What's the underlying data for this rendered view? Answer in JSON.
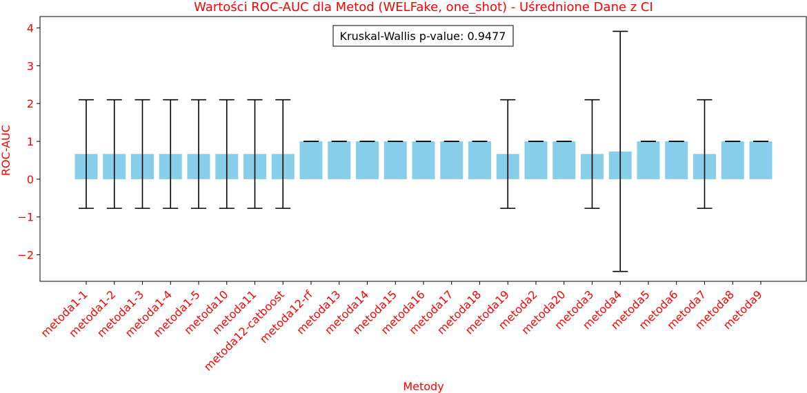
{
  "chart_data": {
    "type": "bar",
    "title": "Wartości ROC-AUC dla Metod (WELFake, one_shot) - Uśrednione Dane z CI",
    "xlabel": "Metody",
    "ylabel": "ROC-AUC",
    "ylim": [
      -2.7,
      4.3
    ],
    "yticks": [
      -2,
      -1,
      0,
      1,
      2,
      3,
      4
    ],
    "ytick_labels": [
      "−2",
      "−1",
      "0",
      "1",
      "2",
      "3",
      "4"
    ],
    "grid": false,
    "annotation": "Kruskal-Wallis p-value: 0.9477",
    "categories": [
      "metoda1-1",
      "metoda1-2",
      "metoda1-3",
      "metoda1-4",
      "metoda1-5",
      "metoda10",
      "metoda11",
      "metoda12-catboost",
      "metoda12-rf",
      "metoda13",
      "metoda14",
      "metoda15",
      "metoda16",
      "metoda17",
      "metoda18",
      "metoda19",
      "metoda2",
      "metoda20",
      "metoda3",
      "metoda4",
      "metoda5",
      "metoda6",
      "metoda7",
      "metoda8",
      "metoda9"
    ],
    "values": [
      0.667,
      0.667,
      0.667,
      0.667,
      0.667,
      0.667,
      0.667,
      0.667,
      1.0,
      1.0,
      1.0,
      1.0,
      1.0,
      1.0,
      1.0,
      0.667,
      1.0,
      1.0,
      0.667,
      0.733,
      1.0,
      1.0,
      0.667,
      1.0,
      1.0
    ],
    "ci_low": [
      -0.77,
      -0.77,
      -0.77,
      -0.77,
      -0.77,
      -0.77,
      -0.77,
      -0.77,
      1.0,
      1.0,
      1.0,
      1.0,
      1.0,
      1.0,
      1.0,
      -0.77,
      1.0,
      1.0,
      -0.77,
      -2.44,
      1.0,
      1.0,
      -0.77,
      1.0,
      1.0
    ],
    "ci_high": [
      2.1,
      2.1,
      2.1,
      2.1,
      2.1,
      2.1,
      2.1,
      2.1,
      1.0,
      1.0,
      1.0,
      1.0,
      1.0,
      1.0,
      1.0,
      2.1,
      1.0,
      1.0,
      2.1,
      3.91,
      1.0,
      1.0,
      2.1,
      1.0,
      1.0
    ],
    "colors": {
      "bar": "#87ceeb",
      "error_bar": "#000000",
      "labels": "#ff0000",
      "axes": "#000000"
    }
  }
}
